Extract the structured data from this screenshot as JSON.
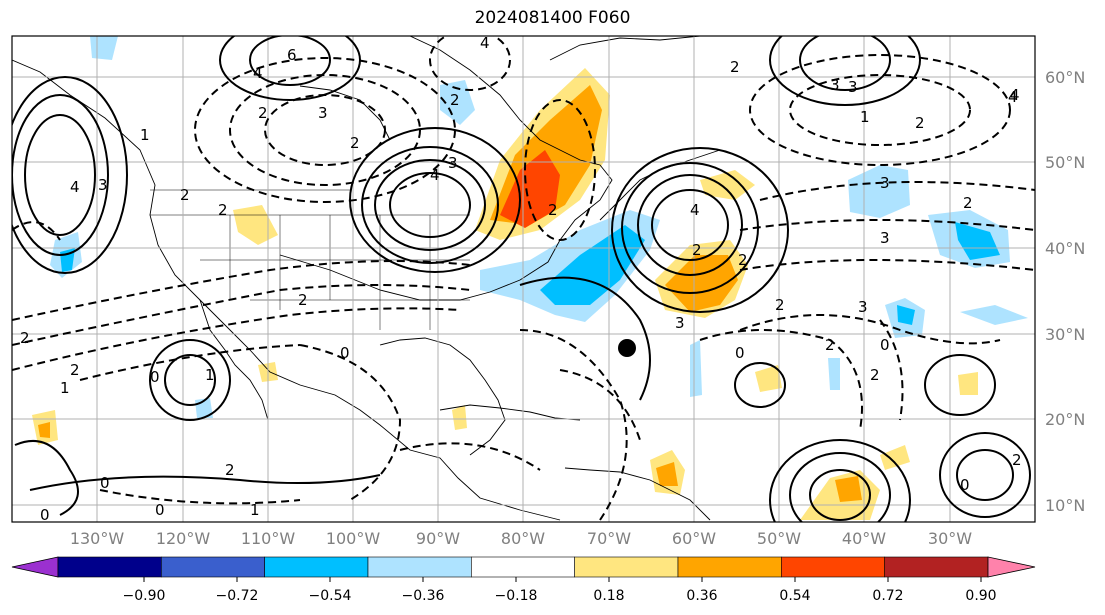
{
  "title": "2024081400 F060",
  "lat_labels": [
    "60°N",
    "50°N",
    "40°N",
    "30°N",
    "20°N",
    "10°N"
  ],
  "lon_labels": [
    "130°W",
    "120°W",
    "110°W",
    "100°W",
    "90°W",
    "80°W",
    "70°W",
    "60°W",
    "50°W",
    "40°W",
    "30°W"
  ],
  "colorbar": {
    "ticks": [
      "−0.90",
      "−0.72",
      "−0.54",
      "−0.36",
      "−0.18",
      "0.18",
      "0.36",
      "0.54",
      "0.72",
      "0.90"
    ],
    "colors": [
      "#9b30d0",
      "#00008b",
      "#3a5fcd",
      "#00bfff",
      "#aee3ff",
      "#ffffff",
      "#ffe680",
      "#ffa500",
      "#ff4500",
      "#b22222",
      "#ff82ab"
    ]
  },
  "contour_labels": [
    "6",
    "4",
    "4",
    "2",
    "3",
    "2",
    "2",
    "3",
    "3",
    "4",
    "3",
    "2",
    "4",
    "2",
    "4",
    "2",
    "2",
    "2",
    "3",
    "4",
    "3",
    "2",
    "2",
    "2",
    "0",
    "2",
    "1",
    "2",
    "1",
    "0",
    "0",
    "0",
    "1",
    "0",
    "2",
    "3",
    "2",
    "0",
    "3",
    "2",
    "0",
    "2",
    "0",
    "4",
    "3",
    "2",
    "1",
    "2",
    "1"
  ],
  "colors": {
    "grid": "#b0b0b0",
    "contour": "#000000",
    "marker": "#000000"
  }
}
